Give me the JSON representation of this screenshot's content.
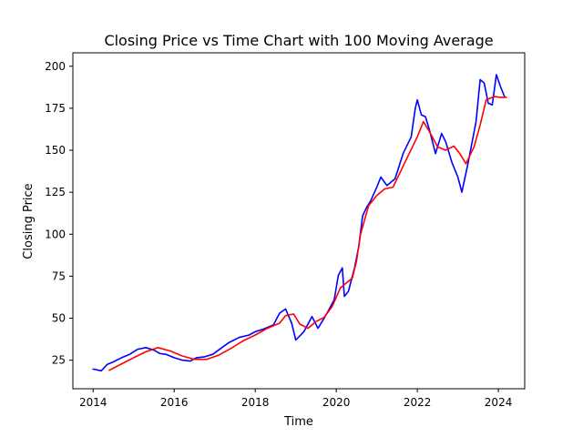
{
  "chart_data": {
    "type": "line",
    "title": "Closing Price vs Time Chart with 100 Moving Average",
    "xlabel": "Time",
    "ylabel": "Closing Price",
    "xlim": [
      2013.5,
      2024.65
    ],
    "ylim": [
      8,
      208
    ],
    "xticks": [
      "2014",
      "2016",
      "2018",
      "2020",
      "2022",
      "2024"
    ],
    "yticks": [
      "25",
      "50",
      "75",
      "100",
      "125",
      "150",
      "175",
      "200"
    ],
    "grid": false,
    "legend": "none",
    "series": [
      {
        "color": "#0000ff",
        "x": [
          2014.0,
          2014.2,
          2014.35,
          2014.5,
          2014.7,
          2014.9,
          2015.1,
          2015.3,
          2015.5,
          2015.65,
          2015.8,
          2016.0,
          2016.2,
          2016.4,
          2016.55,
          2016.75,
          2016.95,
          2017.15,
          2017.35,
          2017.6,
          2017.85,
          2018.0,
          2018.2,
          2018.45,
          2018.6,
          2018.75,
          2018.9,
          2019.0,
          2019.2,
          2019.4,
          2019.55,
          2019.75,
          2019.95,
          2020.05,
          2020.15,
          2020.2,
          2020.3,
          2020.45,
          2020.55,
          2020.65,
          2020.75,
          2020.85,
          2021.0,
          2021.1,
          2021.25,
          2021.45,
          2021.65,
          2021.85,
          2021.95,
          2022.0,
          2022.1,
          2022.2,
          2022.3,
          2022.45,
          2022.6,
          2022.7,
          2022.85,
          2023.0,
          2023.1,
          2023.25,
          2023.45,
          2023.55,
          2023.65,
          2023.75,
          2023.85,
          2023.95,
          2024.05,
          2024.15
        ],
        "y": [
          19.7,
          18.7,
          22.5,
          24.0,
          26.5,
          28.5,
          31.5,
          32.5,
          31.0,
          29.0,
          28.5,
          26.5,
          25.0,
          24.5,
          26.5,
          27.0,
          28.5,
          32.0,
          35.5,
          38.5,
          40.0,
          42.0,
          43.5,
          46.0,
          53.0,
          55.5,
          47.0,
          37.0,
          42.0,
          51.0,
          44.0,
          52.0,
          61.0,
          75.5,
          80.0,
          63.0,
          66.0,
          80.0,
          92.0,
          111.0,
          116.0,
          120.0,
          128.0,
          134.0,
          129.0,
          133.0,
          148.0,
          158.0,
          175.0,
          180.0,
          171.0,
          170.0,
          162.0,
          148.0,
          160.0,
          155.0,
          143.0,
          134.0,
          125.0,
          142.0,
          167.0,
          192.0,
          190.0,
          178.0,
          177.0,
          195.0,
          188.0,
          182.0
        ]
      },
      {
        "color": "#ff0000",
        "x": [
          2014.4,
          2014.6,
          2014.8,
          2015.0,
          2015.3,
          2015.6,
          2015.9,
          2016.2,
          2016.5,
          2016.8,
          2017.1,
          2017.4,
          2017.7,
          2018.0,
          2018.3,
          2018.6,
          2018.75,
          2018.95,
          2019.1,
          2019.3,
          2019.5,
          2019.7,
          2019.9,
          2020.1,
          2020.25,
          2020.4,
          2020.5,
          2020.6,
          2020.8,
          2021.0,
          2021.2,
          2021.4,
          2021.6,
          2021.8,
          2022.0,
          2022.15,
          2022.3,
          2022.5,
          2022.7,
          2022.9,
          2023.05,
          2023.2,
          2023.4,
          2023.55,
          2023.7,
          2023.9,
          2024.05,
          2024.2
        ],
        "y": [
          19.0,
          21.5,
          24.0,
          26.5,
          30.0,
          32.5,
          30.5,
          27.5,
          25.5,
          25.5,
          28.0,
          32.0,
          36.5,
          40.0,
          44.0,
          47.0,
          51.5,
          52.5,
          46.5,
          44.0,
          48.0,
          50.5,
          57.0,
          68.0,
          71.0,
          74.0,
          84.0,
          100.0,
          117.0,
          123.0,
          127.0,
          128.0,
          138.0,
          148.0,
          158.0,
          167.0,
          161.0,
          152.0,
          150.0,
          152.5,
          148.0,
          142.0,
          152.0,
          165.0,
          180.0,
          182.0,
          181.5,
          181.5
        ]
      }
    ]
  }
}
